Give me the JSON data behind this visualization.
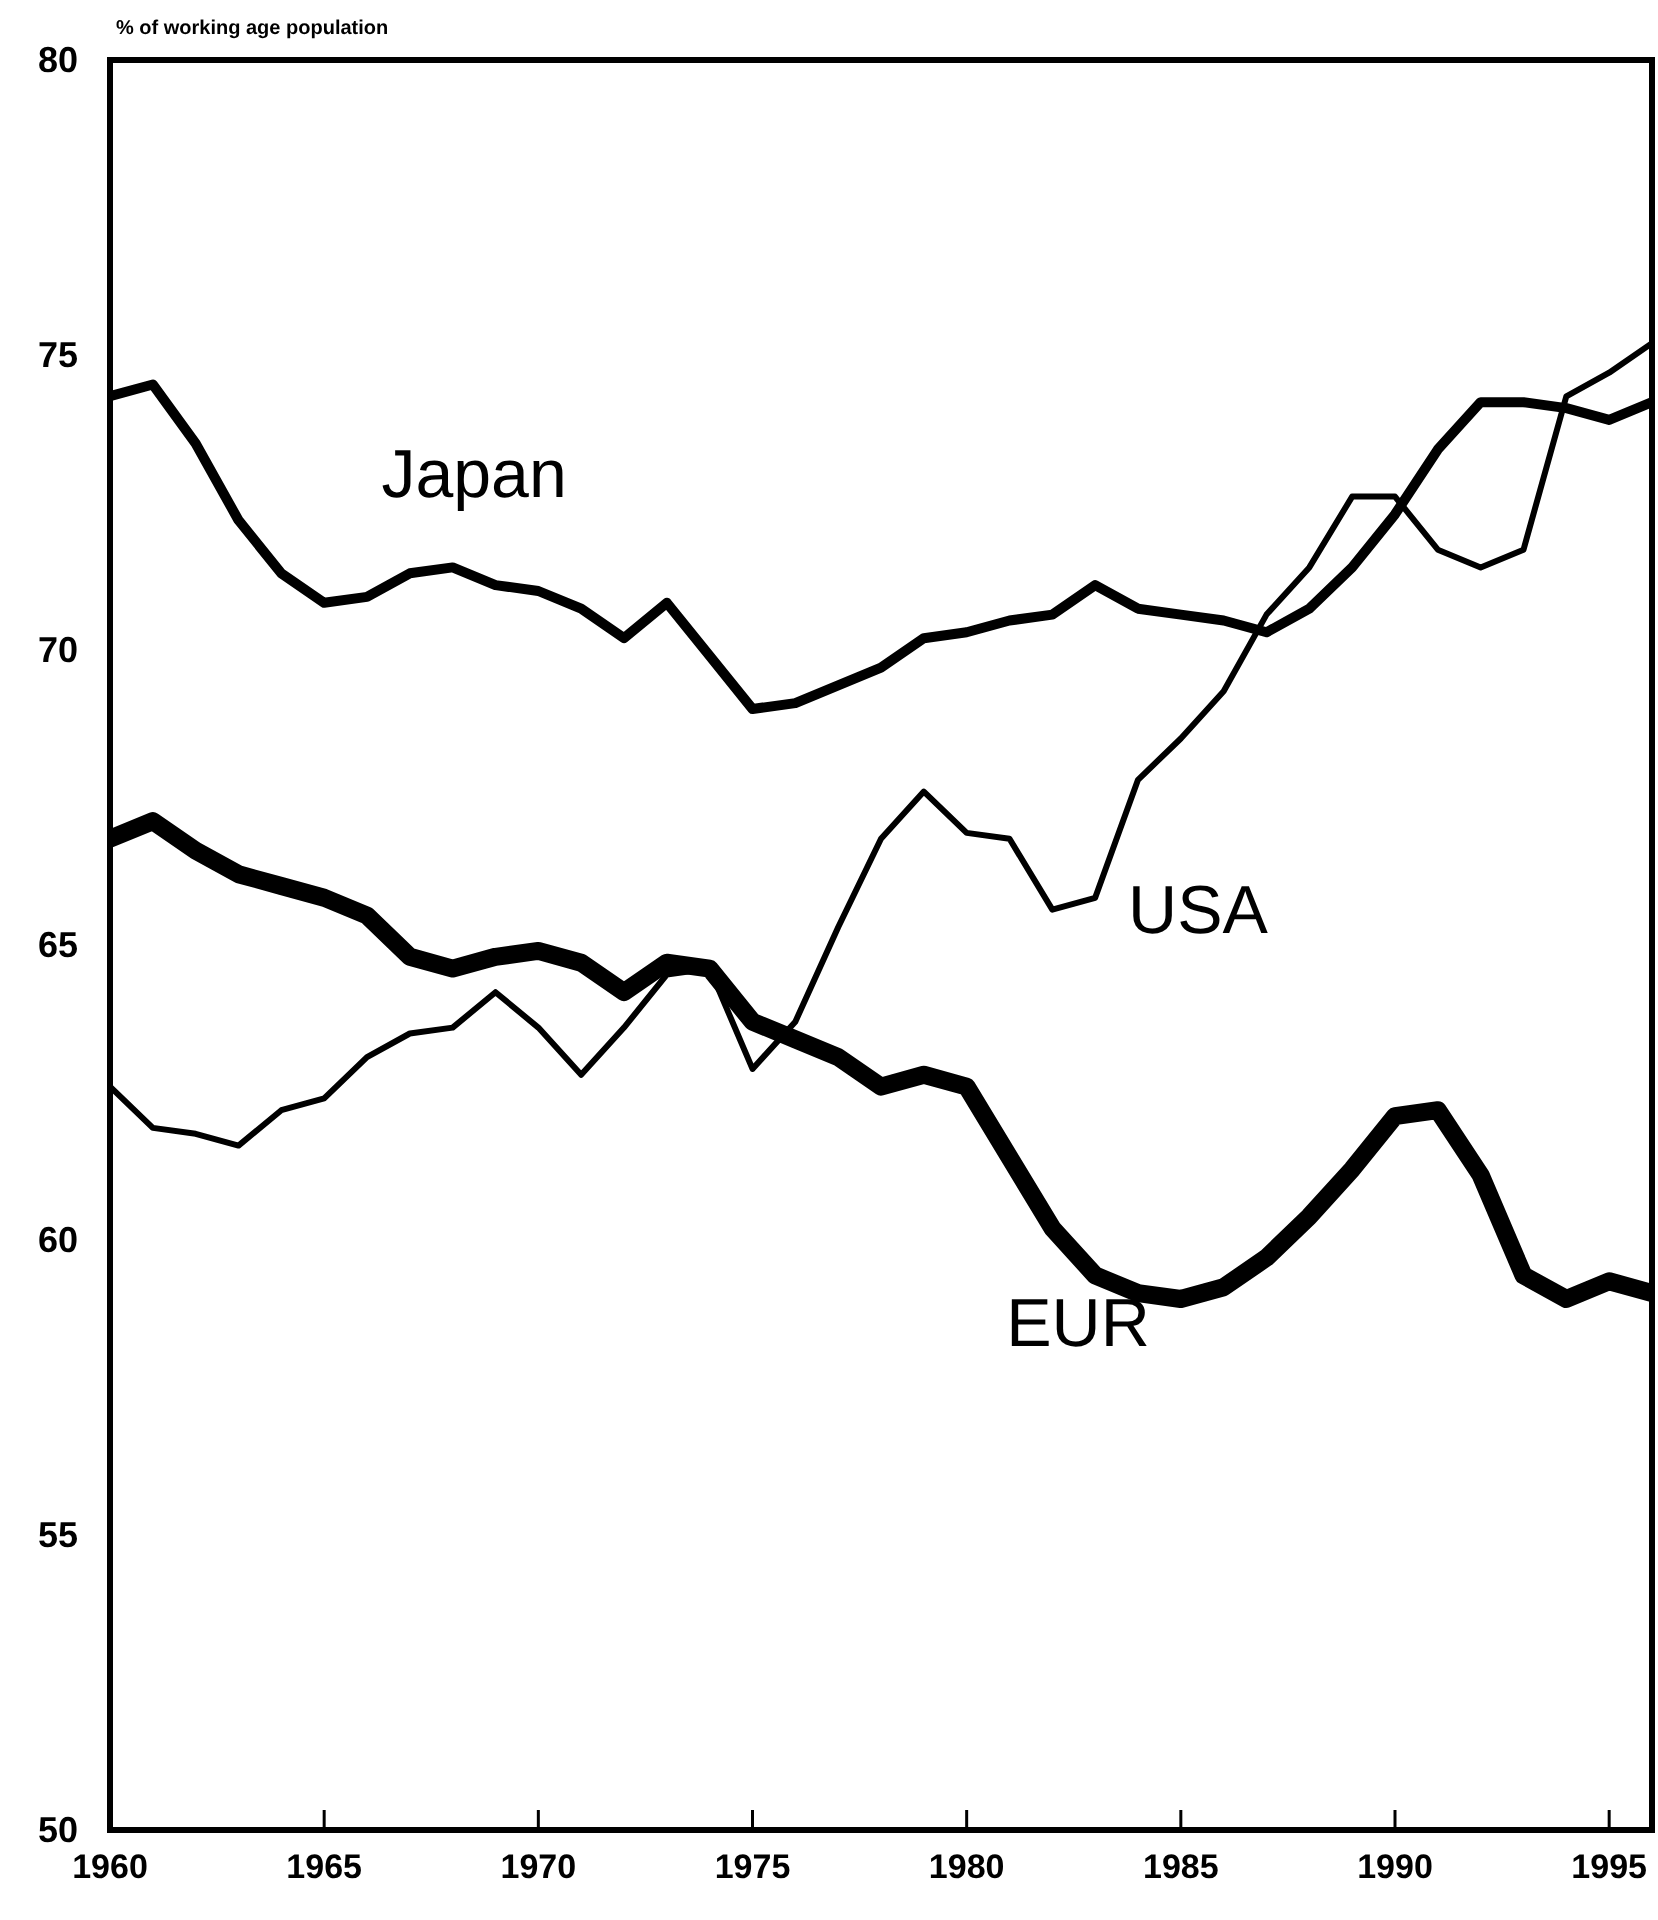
{
  "chart_data": {
    "type": "line",
    "ylabel": "% of working age population",
    "x": [
      1960,
      1961,
      1962,
      1963,
      1964,
      1965,
      1966,
      1967,
      1968,
      1969,
      1970,
      1971,
      1972,
      1973,
      1974,
      1975,
      1976,
      1977,
      1978,
      1979,
      1980,
      1981,
      1982,
      1983,
      1984,
      1985,
      1986,
      1987,
      1988,
      1989,
      1990,
      1991,
      1992,
      1993,
      1994,
      1995,
      1996
    ],
    "series": [
      {
        "name": "Japan",
        "color": "#000000",
        "values": [
          74.3,
          74.5,
          73.5,
          72.2,
          71.3,
          70.8,
          70.9,
          71.3,
          71.4,
          71.1,
          71.0,
          70.7,
          70.2,
          70.8,
          69.9,
          69.0,
          69.1,
          69.4,
          69.7,
          70.2,
          70.3,
          70.5,
          70.6,
          71.1,
          70.7,
          70.6,
          70.5,
          70.3,
          70.7,
          71.4,
          72.3,
          73.4,
          74.2,
          74.2,
          74.1,
          73.9,
          74.2
        ]
      },
      {
        "name": "USA",
        "color": "#000000",
        "values": [
          62.6,
          61.9,
          61.8,
          61.6,
          62.2,
          62.4,
          63.1,
          63.5,
          63.6,
          64.2,
          63.6,
          62.8,
          63.6,
          64.5,
          64.6,
          62.9,
          63.7,
          65.3,
          66.8,
          67.6,
          66.9,
          66.8,
          65.6,
          65.8,
          67.8,
          68.5,
          69.3,
          70.6,
          71.4,
          72.6,
          72.6,
          71.7,
          71.4,
          71.7,
          74.3,
          74.7,
          75.2
        ]
      },
      {
        "name": "EUR",
        "color": "#000000",
        "values": [
          66.8,
          67.1,
          66.6,
          66.2,
          66.0,
          65.8,
          65.5,
          64.8,
          64.6,
          64.8,
          64.9,
          64.7,
          64.2,
          64.7,
          64.6,
          63.7,
          63.4,
          63.1,
          62.6,
          62.8,
          62.6,
          61.4,
          60.2,
          59.4,
          59.1,
          59.0,
          59.2,
          59.7,
          60.4,
          61.2,
          62.1,
          62.2,
          61.1,
          59.4,
          59.0,
          59.3,
          59.1
        ]
      }
    ],
    "xlim": [
      1960,
      1996
    ],
    "xticks": [
      1960,
      1965,
      1970,
      1975,
      1980,
      1985,
      1990,
      1995
    ],
    "ylim": [
      50,
      80
    ],
    "yticks": [
      50,
      55,
      60,
      65,
      70,
      75,
      80
    ],
    "grid": false,
    "legend": false,
    "marker": "none",
    "line_style": "solid"
  }
}
